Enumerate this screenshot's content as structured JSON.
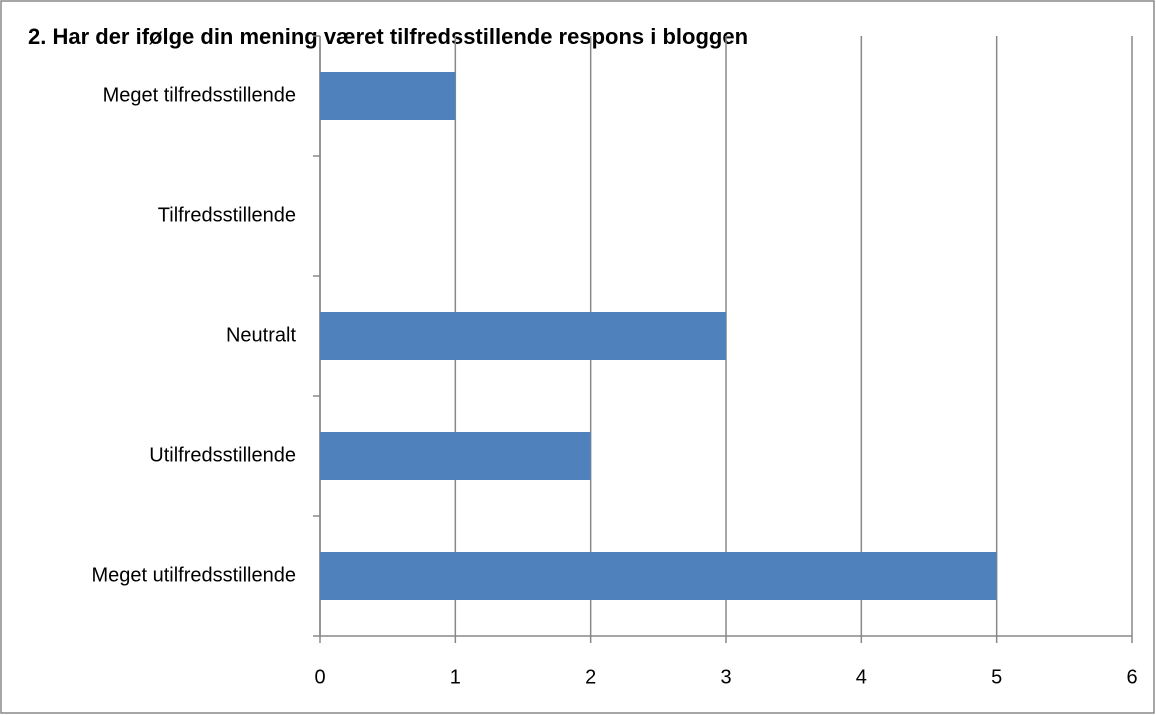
{
  "chart_data": {
    "type": "bar",
    "orientation": "horizontal",
    "title": "2. Har der ifølge din mening været tilfredsstillende respons i bloggen",
    "categories": [
      "Meget tilfredsstillende",
      "Tilfredsstillende",
      "Neutralt",
      "Utilfredsstillende",
      "Meget utilfredsstillende"
    ],
    "values": [
      1,
      0,
      3,
      2,
      5
    ],
    "color": "#4f81bd",
    "xlim": [
      0,
      6
    ],
    "xticks": [
      0,
      1,
      2,
      3,
      4,
      5,
      6
    ],
    "grid": true
  }
}
